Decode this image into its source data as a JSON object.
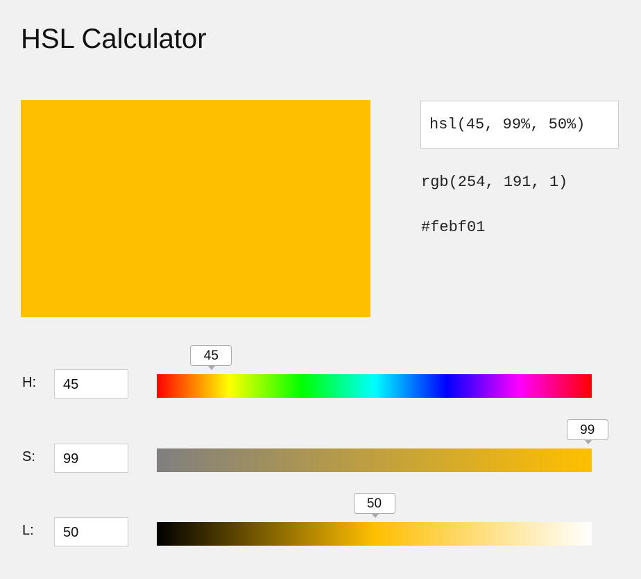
{
  "header": {
    "title": "HSL Calculator"
  },
  "outputs": {
    "hsl": "hsl(45, 99%, 50%)",
    "rgb": "rgb(254, 191, 1)",
    "hex": "#febf01"
  },
  "sliders": [
    {
      "label": "H:",
      "value": 45,
      "range": [
        0,
        360
      ]
    },
    {
      "label": "S:",
      "value": 99,
      "range": [
        0,
        100
      ]
    },
    {
      "label": "L:",
      "value": 50,
      "range": [
        0,
        100
      ]
    }
  ]
}
